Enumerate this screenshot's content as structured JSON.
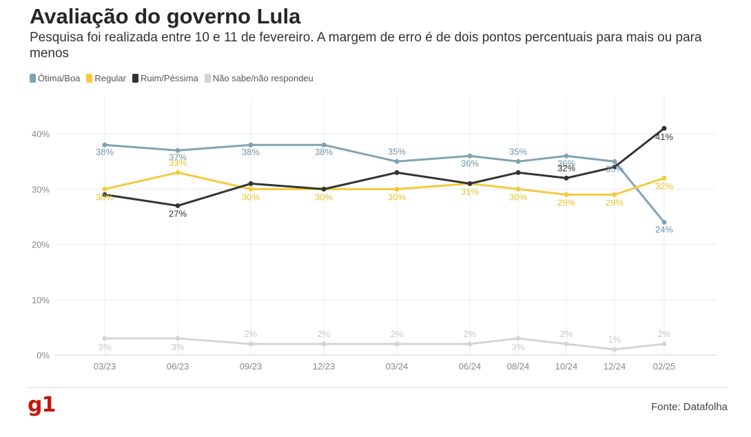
{
  "title": "Avaliação do governo Lula",
  "subtitle": "Pesquisa foi realizada entre 10 e 11 de fevereiro. A margem de erro é de dois pontos percentuais para mais ou para menos",
  "source": "Fonte: Datafolha",
  "logo_text": "g1",
  "chart_data": {
    "type": "line",
    "title": "Avaliação do governo Lula",
    "categories": [
      "03/23",
      "06/23",
      "09/23",
      "12/23",
      "03/24",
      "06/24",
      "08/24",
      "10/24",
      "12/24",
      "02/25"
    ],
    "ylim": [
      0,
      45
    ],
    "yticks": [
      0,
      10,
      20,
      30,
      40
    ],
    "ytick_labels": [
      "0%",
      "10%",
      "20%",
      "30%",
      "40%"
    ],
    "grid": true,
    "legend_position": "top-left",
    "series": [
      {
        "name": "Ótima/Boa",
        "color": "#7fa3b5",
        "values": [
          38,
          37,
          38,
          38,
          35,
          36,
          35,
          36,
          35,
          24
        ],
        "labels": [
          "38%",
          "37%",
          "38%",
          "38%",
          "35%",
          "36%",
          "35%",
          "36%",
          "35%",
          "24%"
        ]
      },
      {
        "name": "Regular",
        "color": "#f2cb3c",
        "values": [
          30,
          33,
          30,
          30,
          30,
          31,
          30,
          29,
          29,
          32
        ],
        "labels": [
          "30%",
          "33%",
          "30%",
          "30%",
          "30%",
          "31%",
          "30%",
          "29%",
          "29%",
          "32%"
        ]
      },
      {
        "name": "Ruim/Péssima",
        "color": "#333333",
        "values": [
          29,
          27,
          31,
          30,
          33,
          31,
          33,
          32,
          34,
          41
        ],
        "labels": [
          "",
          "27%",
          "",
          "",
          "",
          "",
          "",
          "32%",
          "",
          "41%"
        ]
      },
      {
        "name": "Não sabe/não respondeu",
        "color": "#d4d4d4",
        "values": [
          3,
          3,
          2,
          2,
          2,
          2,
          3,
          2,
          1,
          2
        ],
        "labels": [
          "3%",
          "3%",
          "2%",
          "2%",
          "2%",
          "2%",
          "3%",
          "2%",
          "1%",
          "2%"
        ]
      }
    ]
  }
}
